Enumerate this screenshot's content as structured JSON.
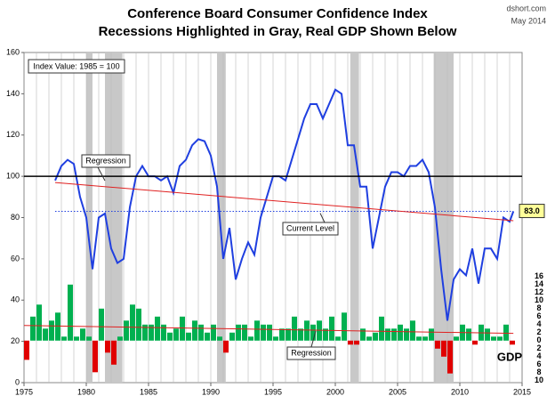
{
  "chart_data": {
    "type": "line",
    "title": "Conference Board Consumer Confidence Index",
    "subtitle": "Recessions Highlighted in Gray, Real GDP Shown Below",
    "source": "dshort.com",
    "date": "May 2014",
    "index_note": "Index Value: 1985 = 100",
    "xlim": [
      1975,
      2015
    ],
    "xticks": [
      1975,
      1980,
      1985,
      1990,
      1995,
      2000,
      2005,
      2010,
      2015
    ],
    "xgrid": [
      1976,
      1977,
      1978,
      1979,
      1980,
      1981,
      1982,
      1983,
      1984,
      1985,
      1986,
      1987,
      1988,
      1989,
      1990,
      1991,
      1992,
      1993,
      1994,
      1995,
      1996,
      1997,
      1998,
      1999,
      2000,
      2001,
      2002,
      2003,
      2004,
      2005,
      2006,
      2007,
      2008,
      2009,
      2010,
      2011,
      2012,
      2013,
      2014
    ],
    "ylim": [
      0,
      160
    ],
    "yticks": [
      0,
      20,
      40,
      60,
      80,
      100,
      120,
      140,
      160
    ],
    "y2lim": [
      -10.5,
      72
    ],
    "y2ticks": [
      {
        "value": -10,
        "label": "10"
      },
      {
        "value": -8,
        "label": "8"
      },
      {
        "value": -6,
        "label": "6"
      },
      {
        "value": -4,
        "label": "4"
      },
      {
        "value": -2,
        "label": "2"
      },
      0,
      2,
      4,
      6,
      8,
      10,
      12,
      14,
      16
    ],
    "recessions": [
      [
        1980.0,
        1980.5
      ],
      [
        1981.5,
        1982.9
      ],
      [
        1990.5,
        1991.2
      ],
      [
        2001.2,
        2001.9
      ],
      [
        2007.9,
        2009.5
      ]
    ],
    "reference_line": 100,
    "current_level": {
      "value": 83.0,
      "label": "83.0",
      "text": "Current Level"
    },
    "series": [
      {
        "type": "line",
        "color": "#1f3fe0",
        "x": [
          1977.5,
          1978.0,
          1978.5,
          1979.0,
          1979.5,
          1980.0,
          1980.5,
          1981.0,
          1981.5,
          1982.0,
          1982.5,
          1983.0,
          1983.5,
          1984.0,
          1984.5,
          1985.0,
          1985.5,
          1986.0,
          1986.5,
          1987.0,
          1987.5,
          1988.0,
          1988.5,
          1989.0,
          1989.5,
          1990.0,
          1990.5,
          1991.0,
          1991.5,
          1992.0,
          1992.5,
          1993.0,
          1993.5,
          1994.0,
          1994.5,
          1995.0,
          1995.5,
          1996.0,
          1996.5,
          1997.0,
          1997.5,
          1998.0,
          1998.5,
          1999.0,
          1999.5,
          2000.0,
          2000.5,
          2001.0,
          2001.5,
          2002.0,
          2002.5,
          2003.0,
          2003.5,
          2004.0,
          2004.5,
          2005.0,
          2005.5,
          2006.0,
          2006.5,
          2007.0,
          2007.5,
          2008.0,
          2008.5,
          2009.0,
          2009.5,
          2010.0,
          2010.5,
          2011.0,
          2011.5,
          2012.0,
          2012.5,
          2013.0,
          2013.5,
          2014.0,
          2014.3
        ],
        "values": [
          98,
          105,
          108,
          106,
          90,
          80,
          55,
          80,
          82,
          65,
          58,
          60,
          85,
          100,
          105,
          100,
          100,
          98,
          100,
          92,
          105,
          108,
          115,
          118,
          117,
          110,
          95,
          60,
          75,
          50,
          60,
          68,
          62,
          80,
          90,
          100,
          100,
          98,
          108,
          118,
          128,
          135,
          135,
          128,
          135,
          142,
          140,
          115,
          115,
          95,
          95,
          65,
          80,
          95,
          102,
          102,
          100,
          105,
          105,
          108,
          102,
          85,
          55,
          30,
          50,
          55,
          52,
          65,
          48,
          65,
          65,
          60,
          80,
          78,
          83
        ]
      },
      {
        "type": "bar",
        "axis": "y2",
        "colors": [
          "#00b050",
          "#e00000"
        ],
        "x": [
          1975.0,
          1975.5,
          1976.0,
          1976.5,
          1977.0,
          1977.5,
          1978.0,
          1978.5,
          1979.0,
          1979.5,
          1980.0,
          1980.5,
          1981.0,
          1981.5,
          1982.0,
          1982.5,
          1983.0,
          1983.5,
          1984.0,
          1984.5,
          1985.0,
          1985.5,
          1986.0,
          1986.5,
          1987.0,
          1987.5,
          1988.0,
          1988.5,
          1989.0,
          1989.5,
          1990.0,
          1990.5,
          1991.0,
          1991.5,
          1992.0,
          1992.5,
          1993.0,
          1993.5,
          1994.0,
          1994.5,
          1995.0,
          1995.5,
          1996.0,
          1996.5,
          1997.0,
          1997.5,
          1998.0,
          1998.5,
          1999.0,
          1999.5,
          2000.0,
          2000.5,
          2001.0,
          2001.5,
          2002.0,
          2002.5,
          2003.0,
          2003.5,
          2004.0,
          2004.5,
          2005.0,
          2005.5,
          2006.0,
          2006.5,
          2007.0,
          2007.5,
          2008.0,
          2008.5,
          2009.0,
          2009.5,
          2010.0,
          2010.5,
          2011.0,
          2011.5,
          2012.0,
          2012.5,
          2013.0,
          2013.5,
          2014.0
        ],
        "values": [
          -4.8,
          6,
          9,
          3,
          5,
          7,
          1,
          14,
          1,
          3,
          1,
          -7.9,
          8,
          -3,
          -6,
          1,
          5,
          9,
          8,
          4,
          4,
          6,
          4,
          2,
          3,
          6,
          2,
          5,
          4,
          2,
          4,
          1,
          -3,
          2,
          4,
          4,
          1,
          5,
          4,
          4,
          1,
          3,
          3,
          6,
          3,
          5,
          4,
          5,
          3,
          6,
          1,
          7,
          -1,
          -1,
          3,
          1,
          2,
          6,
          3,
          3,
          4,
          3,
          5,
          1,
          1,
          3,
          -2,
          -4,
          -8.2,
          1,
          4,
          3,
          -1,
          4,
          3,
          1,
          1,
          4,
          -1
        ]
      }
    ],
    "regression": {
      "label": "Regression",
      "color": "#e02020",
      "x": [
        1977.5,
        2014.3
      ],
      "values": [
        97,
        78.5
      ]
    },
    "gdp_regression": {
      "label": "Regression",
      "color": "#e02020",
      "axis": "y2",
      "x": [
        1975.0,
        2014.3
      ],
      "values": [
        3.8,
        1.8
      ]
    },
    "gdp_label": "GDP"
  }
}
